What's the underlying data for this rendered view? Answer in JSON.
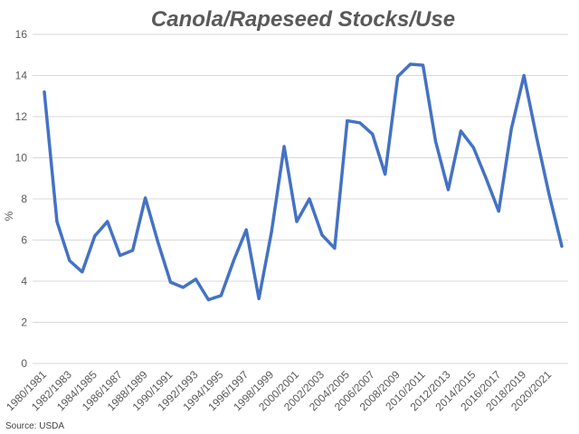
{
  "source": "Source: USDA",
  "chart_data": {
    "type": "line",
    "title": "Canola/Rapeseed Stocks/Use",
    "xlabel": "",
    "ylabel": "%",
    "ylim": [
      0,
      16
    ],
    "yticks": [
      0,
      2,
      4,
      6,
      8,
      10,
      12,
      14,
      16
    ],
    "grid": true,
    "legend": "none",
    "color": "#4472c4",
    "x": [
      "1980/1981",
      "1981/1982",
      "1982/1983",
      "1983/1984",
      "1984/1985",
      "1985/1986",
      "1986/1987",
      "1987/1988",
      "1988/1989",
      "1989/1990",
      "1990/1991",
      "1991/1992",
      "1992/1993",
      "1993/1994",
      "1994/1995",
      "1995/1996",
      "1996/1997",
      "1997/1998",
      "1998/1999",
      "1999/2000",
      "2000/2001",
      "2001/2002",
      "2002/2003",
      "2003/2004",
      "2004/2005",
      "2005/2006",
      "2006/2007",
      "2007/2008",
      "2008/2009",
      "2009/2010",
      "2010/2011",
      "2011/2012",
      "2012/2013",
      "2013/2014",
      "2014/2015",
      "2015/2016",
      "2016/2017",
      "2017/2018",
      "2018/2019",
      "2019/2020",
      "2020/2021",
      "2021/2022"
    ],
    "xtick_labels": [
      "1980/1981",
      "1982/1983",
      "1984/1985",
      "1986/1987",
      "1988/1989",
      "1990/1991",
      "1992/1993",
      "1994/1995",
      "1996/1997",
      "1998/1999",
      "2000/2001",
      "2002/2003",
      "2004/2005",
      "2006/2007",
      "2008/2009",
      "2010/2011",
      "2012/2013",
      "2014/2015",
      "2016/2017",
      "2018/2019",
      "2020/2021"
    ],
    "series": [
      {
        "name": "",
        "values": [
          13.2,
          6.9,
          5.0,
          4.45,
          6.2,
          6.9,
          5.25,
          5.5,
          8.05,
          5.9,
          3.95,
          3.7,
          4.1,
          3.1,
          3.3,
          5.0,
          6.5,
          3.15,
          6.4,
          10.55,
          6.9,
          8.0,
          6.25,
          5.6,
          11.8,
          11.7,
          11.15,
          9.2,
          13.95,
          14.55,
          14.5,
          10.8,
          8.45,
          11.3,
          10.5,
          9.0,
          7.4,
          11.4,
          14.0,
          11.0,
          8.2,
          5.7
        ]
      }
    ]
  }
}
